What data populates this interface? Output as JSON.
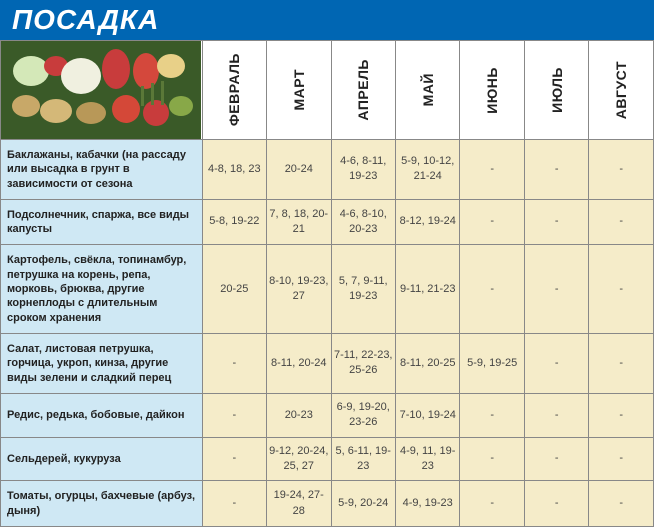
{
  "title": "ПОСАДКА",
  "months": [
    "ФЕВРАЛЬ",
    "МАРТ",
    "АПРЕЛЬ",
    "МАЙ",
    "ИЮНЬ",
    "ИЮЛЬ",
    "АВГУСТ"
  ],
  "rows": [
    {
      "crop": "Баклажаны, кабачки (на рассаду или высадка в грунт в зависимости от сезона",
      "cells": [
        "4-8, 18, 23",
        "20-24",
        "4-6, 8-11, 19-23",
        "5-9, 10-12, 21-24",
        "-",
        "-",
        "-"
      ]
    },
    {
      "crop": "Подсолнечник, спаржа, все виды капусты",
      "cells": [
        "5-8, 19-22",
        "7, 8, 18, 20-21",
        "4-6, 8-10, 20-23",
        "8-12, 19-24",
        "-",
        "-",
        "-"
      ]
    },
    {
      "crop": "Картофель, свёкла, топинамбур, петрушка на корень, репа, морковь, брюква, другие корнеплоды с длительным сроком хранения",
      "cells": [
        "20-25",
        "8-10, 19-23, 27",
        "5, 7, 9-11, 19-23",
        "9-11, 21-23",
        "-",
        "-",
        "-"
      ]
    },
    {
      "crop": "Салат, листовая петрушка, горчица, укроп, кинза, другие виды зелени и сладкий перец",
      "cells": [
        "-",
        "8-11, 20-24",
        "7-11, 22-23, 25-26",
        "8-11, 20-25",
        "5-9, 19-25",
        "-",
        "-"
      ]
    },
    {
      "crop": "Редис, редька, бобовые, дайкон",
      "cells": [
        "-",
        "20-23",
        "6-9, 19-20, 23-26",
        "7-10, 19-24",
        "-",
        "-",
        "-"
      ]
    },
    {
      "crop": "Сельдерей, кукуруза",
      "cells": [
        "-",
        "9-12, 20-24, 25, 27",
        "5, 6-11, 19-23",
        "4-9, 11, 19-23",
        "-",
        "-",
        "-"
      ]
    },
    {
      "crop": "Томаты, огурцы, бахчевые (арбуз, дыня)",
      "cells": [
        "-",
        "19-24, 27-28",
        "5-9, 20-24",
        "4-9, 19-23",
        "-",
        "-",
        "-"
      ]
    }
  ],
  "colors": {
    "header_bg": "#0066b3",
    "header_text": "#ffffff",
    "crop_bg": "#cfe8f4",
    "value_bg": "#f5ecc9",
    "border": "#888888",
    "text": "#222222"
  }
}
